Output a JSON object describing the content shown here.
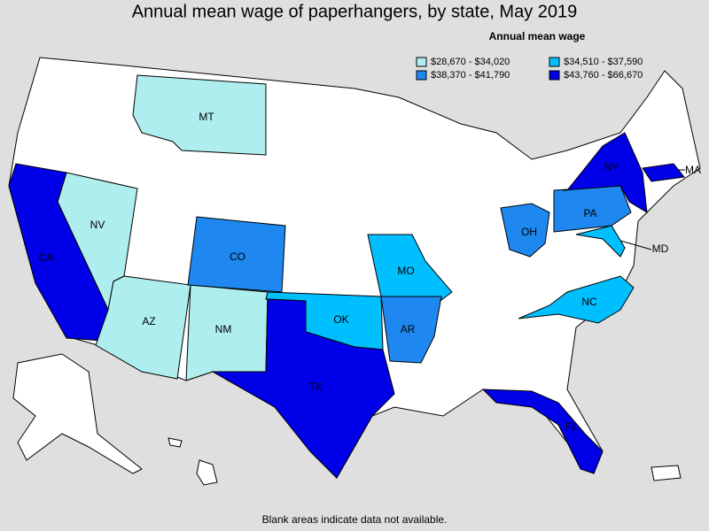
{
  "title": "Annual mean wage of paperhangers, by state, May 2019",
  "legend": {
    "title": "Annual mean wage",
    "items": [
      {
        "label": "$28,670 - $34,020",
        "color": "#aeeeee"
      },
      {
        "label": "$34,510 - $37,590",
        "color": "#00bfff"
      },
      {
        "label": "$38,370 - $41,790",
        "color": "#1e88f0"
      },
      {
        "label": "$43,760 - $66,670",
        "color": "#0000e8"
      }
    ]
  },
  "states": [
    {
      "label": "MT",
      "color": "#aeeeee"
    },
    {
      "label": "NV",
      "color": "#aeeeee"
    },
    {
      "label": "CA",
      "color": "#0000e8"
    },
    {
      "label": "AZ",
      "color": "#aeeeee"
    },
    {
      "label": "NM",
      "color": "#aeeeee"
    },
    {
      "label": "CO",
      "color": "#1e88f0"
    },
    {
      "label": "OK",
      "color": "#00bfff"
    },
    {
      "label": "TX",
      "color": "#0000e8"
    },
    {
      "label": "MO",
      "color": "#00bfff"
    },
    {
      "label": "AR",
      "color": "#1e88f0"
    },
    {
      "label": "OH",
      "color": "#1e88f0"
    },
    {
      "label": "PA",
      "color": "#1e88f0"
    },
    {
      "label": "NY",
      "color": "#0000e8"
    },
    {
      "label": "MA",
      "color": "#0000e8"
    },
    {
      "label": "MD",
      "color": "#00bfff"
    },
    {
      "label": "NC",
      "color": "#00bfff"
    },
    {
      "label": "FL",
      "color": "#0000e8"
    }
  ],
  "footnote": "Blank areas indicate data not available."
}
